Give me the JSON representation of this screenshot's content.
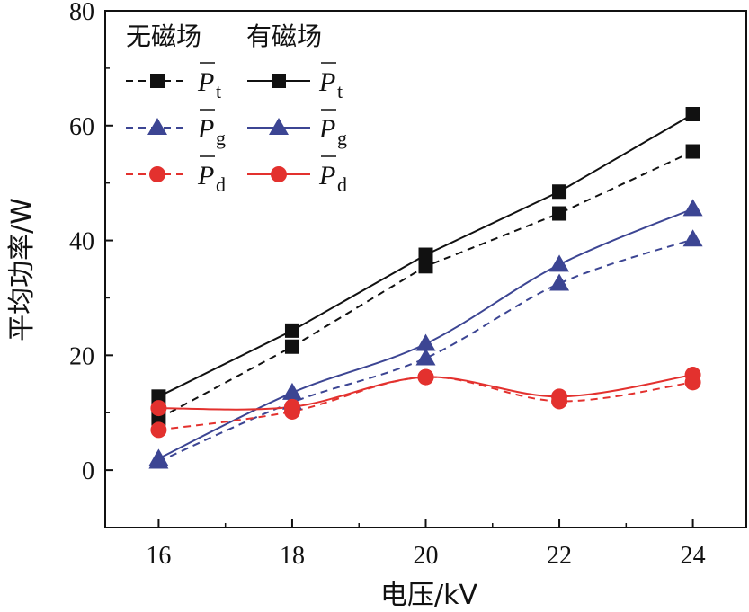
{
  "chart_data": {
    "type": "line",
    "title": "",
    "xlabel": "电压/kV",
    "ylabel": "平均功率/W",
    "xlim": [
      15.2,
      24.8
    ],
    "ylim": [
      -10,
      80
    ],
    "x_ticks": [
      16,
      18,
      20,
      22,
      24
    ],
    "y_ticks": [
      0,
      20,
      40,
      60,
      80
    ],
    "x": [
      16,
      18,
      20,
      22,
      24
    ],
    "legend": {
      "placement": "top-left",
      "headers": [
        "无磁场",
        "有磁场"
      ],
      "symbol": "P",
      "overline": true
    },
    "series": [
      {
        "name": "Pt 无磁场",
        "group": "无磁场",
        "sub": "t",
        "values": [
          9,
          21.5,
          35.5,
          44.7,
          55.5
        ],
        "color": "#111111",
        "dash": "dashed",
        "marker": "square"
      },
      {
        "name": "Pt 有磁场",
        "group": "有磁场",
        "sub": "t",
        "values": [
          12.8,
          24.3,
          37.5,
          48.5,
          62
        ],
        "color": "#111111",
        "dash": "solid",
        "marker": "square"
      },
      {
        "name": "Pg 无磁场",
        "group": "无磁场",
        "sub": "g",
        "values": [
          1.5,
          11.8,
          19.5,
          32.5,
          40.2
        ],
        "color": "#3c4593",
        "dash": "dashed",
        "marker": "triangle"
      },
      {
        "name": "Pg 有磁场",
        "group": "有磁场",
        "sub": "g",
        "values": [
          2,
          13.5,
          22,
          35.8,
          45.5
        ],
        "color": "#3c4593",
        "dash": "solid",
        "marker": "triangle"
      },
      {
        "name": "Pd 无磁场",
        "group": "无磁场",
        "sub": "d",
        "values": [
          7,
          10.2,
          16.2,
          12,
          15.3
        ],
        "color": "#e3312e",
        "dash": "dashed",
        "marker": "circle"
      },
      {
        "name": "Pd 有磁场",
        "group": "有磁场",
        "sub": "d",
        "values": [
          10.8,
          11,
          16.2,
          12.8,
          16.6
        ],
        "color": "#e3312e",
        "dash": "solid",
        "marker": "circle"
      }
    ]
  }
}
